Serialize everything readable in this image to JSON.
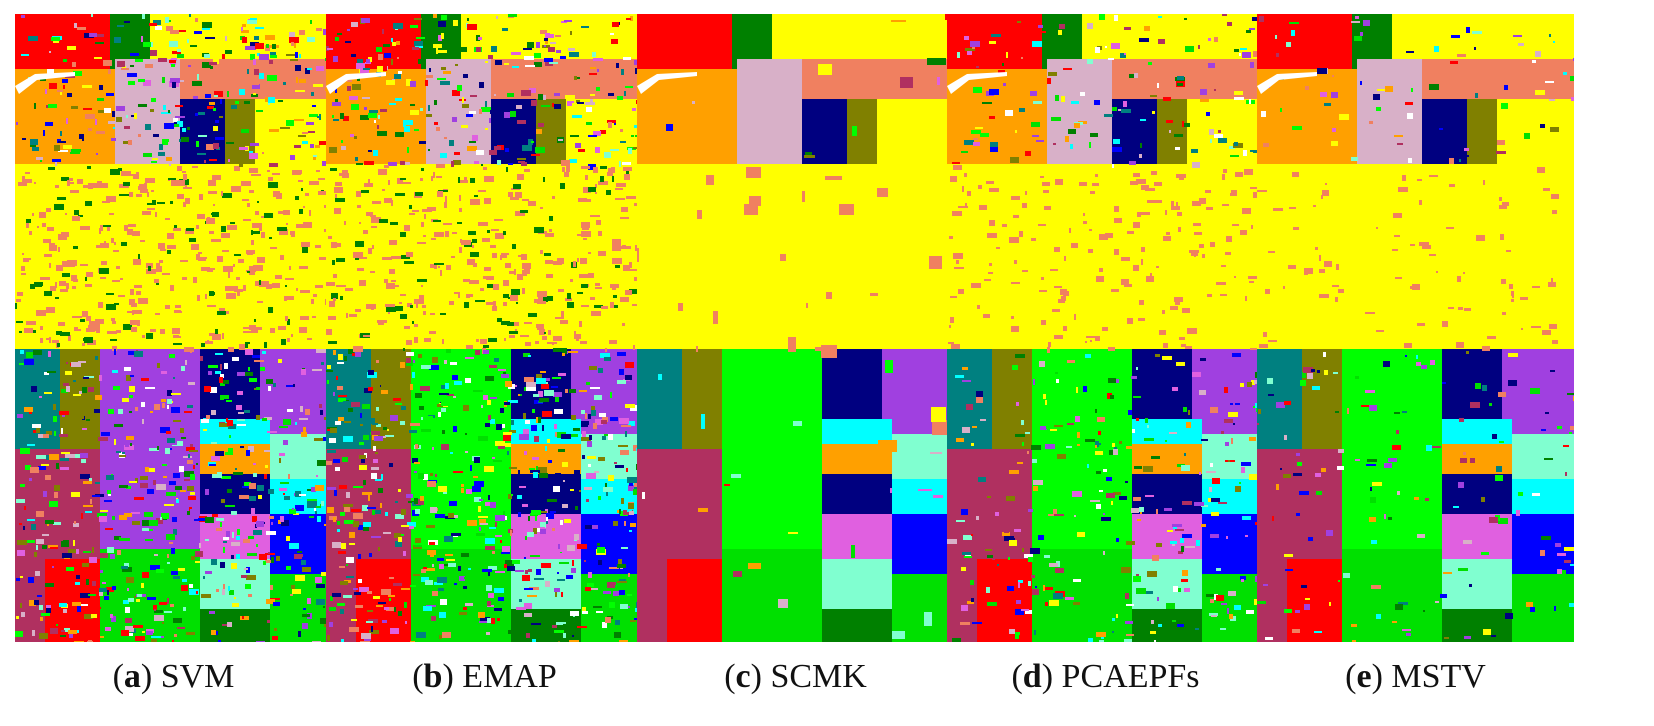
{
  "panels": [
    {
      "id": "a",
      "letter": "a",
      "method": "SVM",
      "noise": "high",
      "palette_shift": 0
    },
    {
      "id": "b",
      "letter": "b",
      "method": "EMAP",
      "noise": "high",
      "palette_shift": 1
    },
    {
      "id": "c",
      "letter": "c",
      "method": "SCMK",
      "noise": "smooth",
      "palette_shift": 2
    },
    {
      "id": "d",
      "letter": "d",
      "method": "PCAEPFs",
      "noise": "medium",
      "palette_shift": 3
    },
    {
      "id": "e",
      "letter": "e",
      "method": "MSTV",
      "noise": "low",
      "palette_shift": 4
    }
  ],
  "class_colors": {
    "red": "#ff0000",
    "yellow": "#ffff00",
    "salmon": "#f08060",
    "green": "#00e000",
    "bright_green": "#00ff00",
    "dark_green": "#008000",
    "olive": "#808000",
    "purple": "#a040e0",
    "navy": "#000080",
    "blue": "#0000ff",
    "cyan": "#00ffff",
    "aquamarine": "#80ffd0",
    "magenta": "#e060e0",
    "maroon": "#b03060",
    "teal": "#008080",
    "orange": "#ffa000",
    "pink_gray": "#d8b0c8",
    "white": "#ffffff"
  }
}
